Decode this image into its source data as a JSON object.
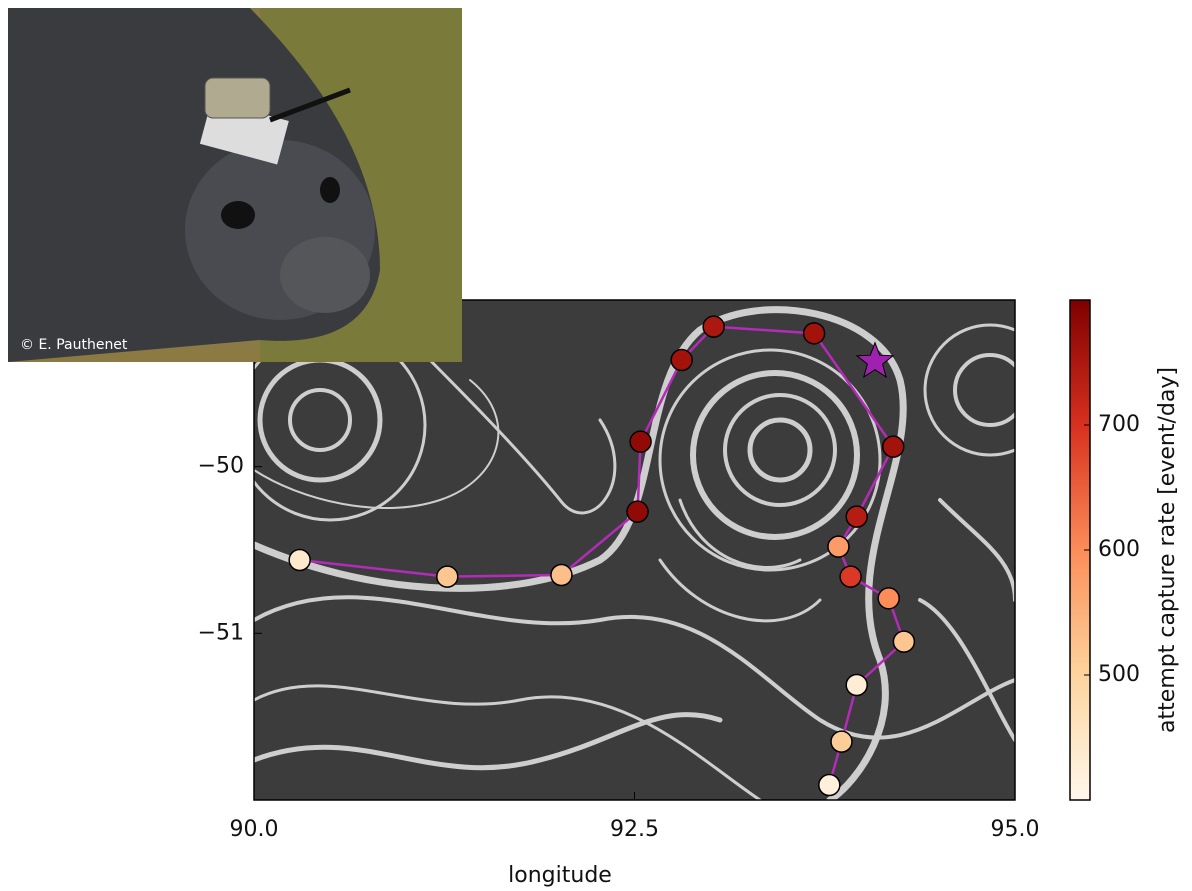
{
  "chart_data": {
    "type": "scatter",
    "x_label": "longitude",
    "colorbar_label": "attempt capture rate [event/day]",
    "x": [
      90.3,
      91.27,
      92.02,
      92.52,
      92.54,
      92.81,
      93.02,
      93.68,
      94.2,
      93.96,
      93.84,
      93.92,
      94.17,
      94.27,
      93.96,
      93.86,
      93.78
    ],
    "values": [
      -50.56,
      -50.66,
      -50.65,
      -50.27,
      -49.85,
      -49.36,
      -49.16,
      -49.2,
      -49.88,
      -50.3,
      -50.48,
      -50.66,
      -50.79,
      -51.05,
      -51.31,
      -51.65,
      -51.91
    ],
    "color_values": [
      440,
      520,
      530,
      780,
      780,
      760,
      750,
      760,
      760,
      740,
      580,
      690,
      600,
      520,
      430,
      510,
      420
    ],
    "line_color": "#b22cb8",
    "star": {
      "x": 94.08,
      "y": -49.37,
      "color": "#a020b0"
    },
    "xlim": [
      90,
      95
    ],
    "ylim": [
      -52,
      -49
    ],
    "xticks": [
      {
        "value": 90,
        "label": "90.0"
      },
      92.5,
      {
        "value": 95,
        "label": "95.0"
      }
    ],
    "yticks": [
      {
        "value": -51,
        "label": "−51"
      },
      {
        "value": -50,
        "label": "−50"
      }
    ],
    "clim": [
      400,
      800
    ],
    "cticks": [
      500,
      600,
      700
    ],
    "colormap": [
      "#fff7ec",
      "#fdd49e",
      "#fc8d59",
      "#d7301f",
      "#7f0000"
    ],
    "photo_credit": "© E. Pauthenet"
  }
}
